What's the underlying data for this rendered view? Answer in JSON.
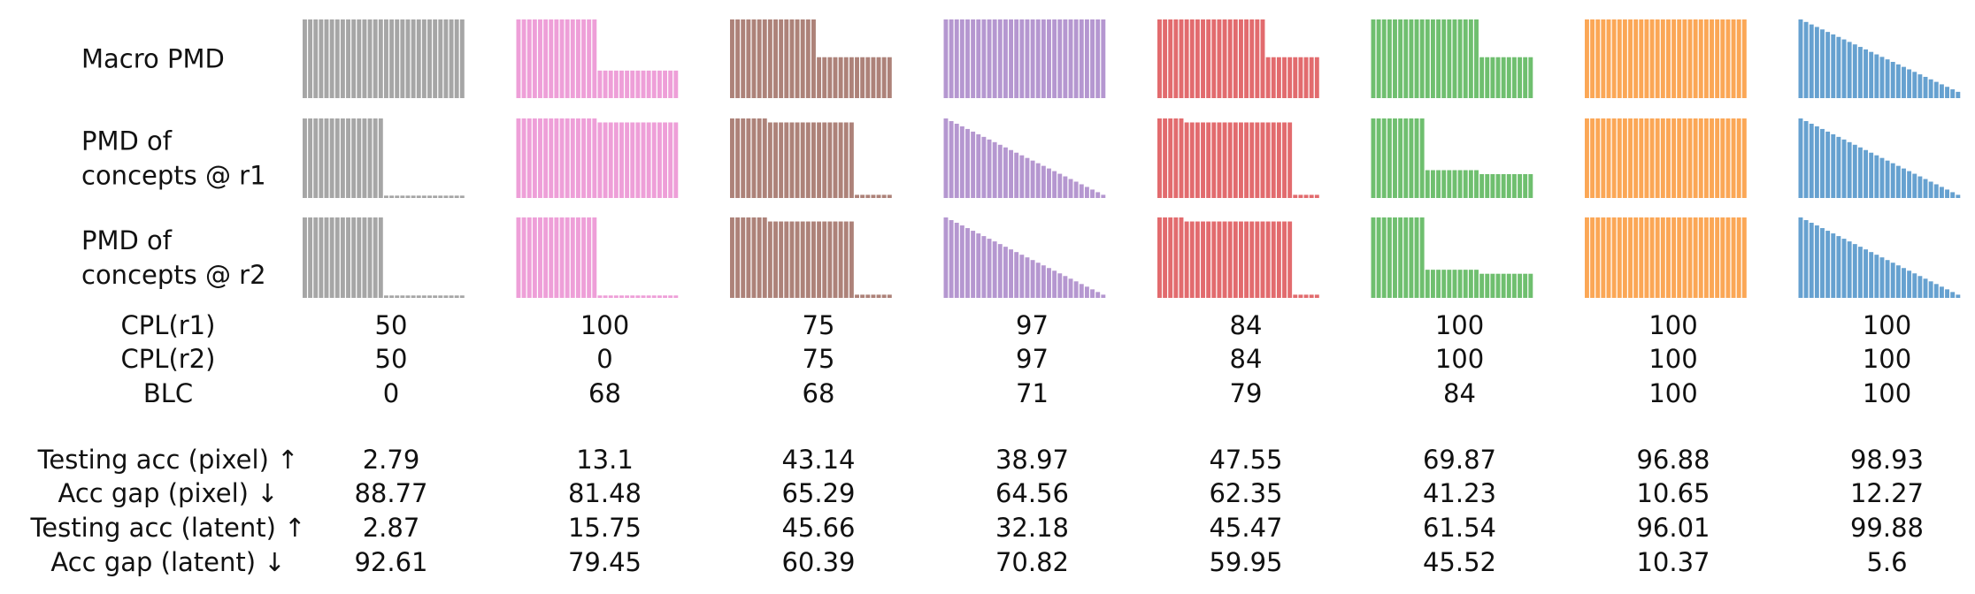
{
  "chart_data": {
    "type": "bar",
    "row_labels": {
      "macro": [
        "Macro PMD"
      ],
      "r1": [
        "PMD of",
        "concepts @ r1"
      ],
      "r2": [
        "PMD of",
        "concepts @ r2"
      ]
    },
    "columns": [
      {
        "color": "#a6a6a6",
        "macro": [
          {
            "n": 30,
            "y0": 1.0,
            "y1": 1.0
          }
        ],
        "r1": [
          {
            "n": 15,
            "y0": 1.0,
            "y1": 1.0
          },
          {
            "n": 15,
            "y0": 0.03,
            "y1": 0.03
          }
        ],
        "r2": [
          {
            "n": 15,
            "y0": 1.0,
            "y1": 1.0
          },
          {
            "n": 15,
            "y0": 0.03,
            "y1": 0.03
          }
        ]
      },
      {
        "color": "#ee9fd8",
        "macro": [
          {
            "n": 15,
            "y0": 1.0,
            "y1": 1.0
          },
          {
            "n": 15,
            "y0": 0.35,
            "y1": 0.35
          }
        ],
        "r1": [
          {
            "n": 15,
            "y0": 1.0,
            "y1": 1.0
          },
          {
            "n": 15,
            "y0": 0.95,
            "y1": 0.95
          }
        ],
        "r2": [
          {
            "n": 15,
            "y0": 1.0,
            "y1": 1.0
          },
          {
            "n": 15,
            "y0": 0.03,
            "y1": 0.03
          }
        ]
      },
      {
        "color": "#ad8279",
        "macro": [
          {
            "n": 16,
            "y0": 1.0,
            "y1": 1.0
          },
          {
            "n": 14,
            "y0": 0.52,
            "y1": 0.52
          }
        ],
        "r1": [
          {
            "n": 7,
            "y0": 1.0,
            "y1": 1.0
          },
          {
            "n": 16,
            "y0": 0.95,
            "y1": 0.95
          },
          {
            "n": 7,
            "y0": 0.04,
            "y1": 0.04
          }
        ],
        "r2": [
          {
            "n": 7,
            "y0": 1.0,
            "y1": 1.0
          },
          {
            "n": 16,
            "y0": 0.95,
            "y1": 0.95
          },
          {
            "n": 7,
            "y0": 0.04,
            "y1": 0.04
          }
        ]
      },
      {
        "color": "#b597d0",
        "macro": [
          {
            "n": 30,
            "y0": 1.0,
            "y1": 1.0
          }
        ],
        "r1": [
          {
            "n": 30,
            "y0": 1.0,
            "y1": 0.04
          }
        ],
        "r2": [
          {
            "n": 30,
            "y0": 1.0,
            "y1": 0.04
          }
        ]
      },
      {
        "color": "#e26b6e",
        "macro": [
          {
            "n": 20,
            "y0": 1.0,
            "y1": 1.0
          },
          {
            "n": 10,
            "y0": 0.52,
            "y1": 0.52
          }
        ],
        "r1": [
          {
            "n": 5,
            "y0": 1.0,
            "y1": 1.0
          },
          {
            "n": 20,
            "y0": 0.95,
            "y1": 0.95
          },
          {
            "n": 5,
            "y0": 0.04,
            "y1": 0.04
          }
        ],
        "r2": [
          {
            "n": 5,
            "y0": 1.0,
            "y1": 1.0
          },
          {
            "n": 20,
            "y0": 0.95,
            "y1": 0.95
          },
          {
            "n": 5,
            "y0": 0.04,
            "y1": 0.04
          }
        ]
      },
      {
        "color": "#6fbf6f",
        "macro": [
          {
            "n": 20,
            "y0": 1.0,
            "y1": 1.0
          },
          {
            "n": 10,
            "y0": 0.52,
            "y1": 0.52
          }
        ],
        "r1": [
          {
            "n": 10,
            "y0": 1.0,
            "y1": 1.0
          },
          {
            "n": 10,
            "y0": 0.35,
            "y1": 0.35
          },
          {
            "n": 10,
            "y0": 0.3,
            "y1": 0.3
          }
        ],
        "r2": [
          {
            "n": 10,
            "y0": 1.0,
            "y1": 1.0
          },
          {
            "n": 10,
            "y0": 0.35,
            "y1": 0.35
          },
          {
            "n": 10,
            "y0": 0.3,
            "y1": 0.3
          }
        ]
      },
      {
        "color": "#fba756",
        "macro": [
          {
            "n": 30,
            "y0": 1.0,
            "y1": 1.0
          }
        ],
        "r1": [
          {
            "n": 30,
            "y0": 1.0,
            "y1": 1.0
          }
        ],
        "r2": [
          {
            "n": 30,
            "y0": 1.0,
            "y1": 1.0
          }
        ]
      },
      {
        "color": "#66a1d0",
        "macro": [
          {
            "n": 30,
            "y0": 1.0,
            "y1": 0.08
          }
        ],
        "r1": [
          {
            "n": 30,
            "y0": 1.0,
            "y1": 0.04
          }
        ],
        "r2": [
          {
            "n": 30,
            "y0": 1.0,
            "y1": 0.04
          }
        ]
      }
    ],
    "metrics": [
      {
        "label": "CPL(r1)",
        "values": [
          "50",
          "100",
          "75",
          "97",
          "84",
          "100",
          "100",
          "100"
        ]
      },
      {
        "label": "CPL(r2)",
        "values": [
          "50",
          "0",
          "75",
          "97",
          "84",
          "100",
          "100",
          "100"
        ]
      },
      {
        "label": "BLC",
        "values": [
          "0",
          "68",
          "68",
          "71",
          "79",
          "84",
          "100",
          "100"
        ]
      },
      {
        "label": "Testing acc (pixel) ↑",
        "values": [
          "2.79",
          "13.1",
          "43.14",
          "38.97",
          "47.55",
          "69.87",
          "96.88",
          "98.93"
        ]
      },
      {
        "label": "Acc gap (pixel) ↓",
        "values": [
          "88.77",
          "81.48",
          "65.29",
          "64.56",
          "62.35",
          "41.23",
          "10.65",
          "12.27"
        ]
      },
      {
        "label": "Testing acc (latent) ↑",
        "values": [
          "2.87",
          "15.75",
          "45.66",
          "32.18",
          "45.47",
          "61.54",
          "96.01",
          "99.88"
        ]
      },
      {
        "label": "Acc gap (latent) ↓",
        "values": [
          "92.61",
          "79.45",
          "60.39",
          "70.82",
          "59.95",
          "45.52",
          "10.37",
          "5.6"
        ]
      }
    ]
  }
}
